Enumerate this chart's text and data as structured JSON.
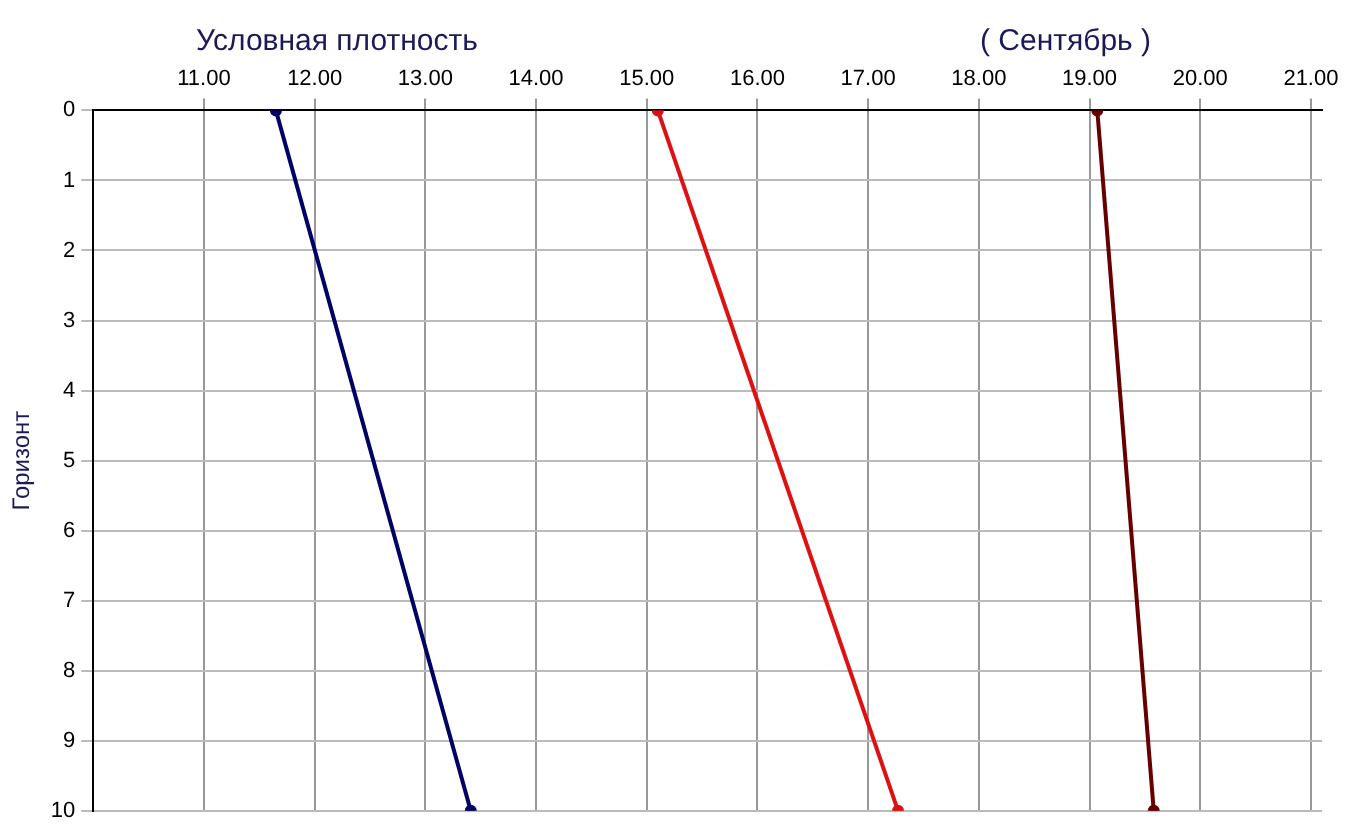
{
  "chart_data": {
    "type": "line",
    "title": "Условная плотность",
    "subtitle": "( Сентябрь )",
    "ylabel": "Горизонт",
    "xlim": [
      10,
      21.1
    ],
    "xticks": [
      {
        "value": 11,
        "label": "11.00"
      },
      {
        "value": 12,
        "label": "12.00"
      },
      {
        "value": 13,
        "label": "13.00"
      },
      {
        "value": 14,
        "label": "14.00"
      },
      {
        "value": 15,
        "label": "15.00"
      },
      {
        "value": 16,
        "label": "16.00"
      },
      {
        "value": 17,
        "label": "17.00"
      },
      {
        "value": 18,
        "label": "18.00"
      },
      {
        "value": 19,
        "label": "19.00"
      },
      {
        "value": 20,
        "label": "20.00"
      },
      {
        "value": 21,
        "label": "21.00"
      }
    ],
    "ylim": [
      10,
      0
    ],
    "yticks": [
      0,
      1,
      2,
      3,
      4,
      5,
      6,
      7,
      8,
      9,
      10
    ],
    "grid": true,
    "legend": false,
    "marker": "circle",
    "line_style": "solid",
    "series": [
      {
        "color": "#000066",
        "x": [
          11.65,
          13.41
        ],
        "values": [
          0,
          10
        ]
      },
      {
        "color": "#dd1111",
        "x": [
          15.1,
          17.27
        ],
        "values": [
          0,
          10
        ]
      },
      {
        "color": "#660000",
        "x": [
          19.07,
          19.58
        ],
        "values": [
          0,
          10
        ]
      }
    ]
  }
}
